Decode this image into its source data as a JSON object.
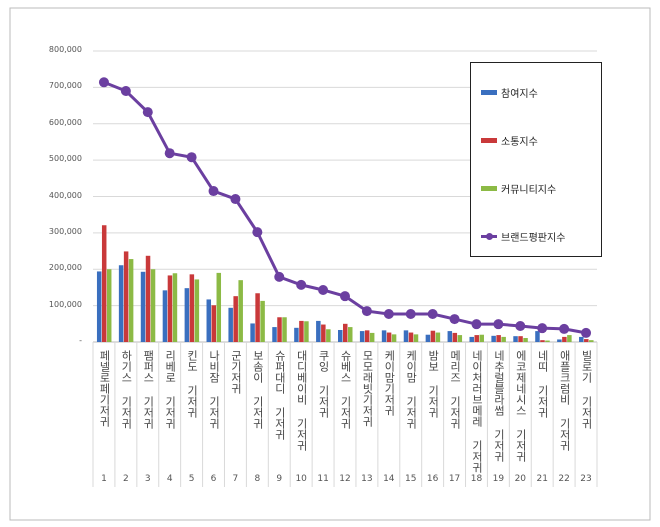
{
  "chart_data": {
    "type": "bar",
    "categories": [
      "페넬로페기저귀",
      "하기스 기저귀",
      "팸퍼스 기저귀",
      "리베로 기저귀",
      "킨도 기저귀",
      "나비잠 기저귀",
      "군기저귀",
      "보솜이 기저귀",
      "슈퍼대디 기저귀",
      "대디베이비 기저귀",
      "쿠잉 기저귀",
      "슈베스 기저귀",
      "모모래빗기저귀",
      "케이맘기저귀",
      "케이맘 기저귀",
      "밤보 기저귀",
      "메리즈 기저귀",
      "네이처러브메레 기저귀",
      "네추럴블라썸 기저귀",
      "에코제네시스 기저귀",
      "네띠 기저귀",
      "애플크럼비 기저귀",
      "빌로기 기저귀"
    ],
    "ranks": [
      "1",
      "2",
      "3",
      "4",
      "5",
      "6",
      "7",
      "8",
      "9",
      "10",
      "11",
      "12",
      "13",
      "14",
      "15",
      "16",
      "17",
      "18",
      "19",
      "20",
      "21",
      "22",
      "23"
    ],
    "series": [
      {
        "name": "참여지수",
        "type": "bar",
        "color": "#3a6fbf",
        "values": [
          194000,
          211000,
          193000,
          142000,
          148000,
          117000,
          94000,
          51000,
          41000,
          39000,
          58000,
          33000,
          30000,
          32000,
          32000,
          20000,
          30000,
          14000,
          17000,
          16000,
          30000,
          7000,
          14000
        ]
      },
      {
        "name": "소통지수",
        "type": "bar",
        "color": "#c9393a",
        "values": [
          321000,
          249000,
          237000,
          183000,
          186000,
          101000,
          126000,
          134000,
          68000,
          58000,
          48000,
          50000,
          32000,
          26000,
          26000,
          31000,
          25000,
          19000,
          19000,
          16000,
          5000,
          14000,
          8000
        ]
      },
      {
        "name": "커뮤니티지수",
        "type": "bar",
        "color": "#8cba45",
        "values": [
          200000,
          228000,
          200000,
          189000,
          172000,
          190000,
          170000,
          113000,
          68000,
          57000,
          35000,
          41000,
          25000,
          21000,
          21000,
          26000,
          19000,
          20000,
          14000,
          11000,
          4000,
          19000,
          5000
        ]
      },
      {
        "name": "브랜드평판지수",
        "type": "line",
        "color": "#6b3fa0",
        "values": [
          714000,
          690000,
          632000,
          519000,
          508000,
          415000,
          393000,
          302000,
          179000,
          157000,
          143000,
          126000,
          85000,
          77000,
          77000,
          77000,
          63000,
          49000,
          49000,
          44000,
          38000,
          36000,
          25000
        ]
      }
    ],
    "yticks": [
      "-",
      "100,000",
      "200,000",
      "300,000",
      "400,000",
      "500,000",
      "600,000",
      "700,000",
      "800,000"
    ],
    "ylim": [
      0,
      800000
    ],
    "grid": true,
    "legend_position": "right"
  }
}
